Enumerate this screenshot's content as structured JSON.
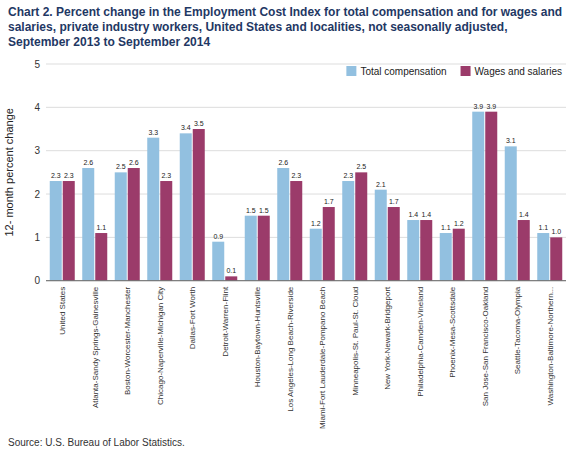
{
  "chart_data": {
    "type": "bar",
    "title": "Chart 2. Percent change in the Employment Cost Index for total compensation and for wages and salaries, private industry workers, United States and localities, not seasonally adjusted, September 2013 to September 2014",
    "y_label": "12- month percent change",
    "source": "Source: U.S. Bureau of Labor Statistics.",
    "categories": [
      "United States",
      "Atlanta-Sandy Springs-Gainesville",
      "Boston-Worcester-Manchester",
      "Chicago-Naperville-Michigan City",
      "Dallas-Fort Worth",
      "Detroit-Warren-Flint",
      "Houston-Baytown-Huntsville",
      "Los Angeles-Long Beach-Riverside",
      "Miami-Fort Lauderdale-Pompano Beach",
      "Minneapolis-St. Paul-St. Cloud",
      "New York-Newark-Bridgeport",
      "Philadelphia-Camden-Vineland",
      "Phoenix-Mesa-Scottsdale",
      "San Jose-San Francisco-Oakland",
      "Seattle-Tacoma-Olympia",
      "Washington-Baltimore-Northern..."
    ],
    "series": [
      {
        "name": "Total compensation",
        "color": "#92C0E0",
        "values": [
          2.3,
          2.6,
          2.5,
          3.3,
          3.4,
          0.9,
          1.5,
          2.6,
          1.2,
          2.3,
          2.1,
          1.4,
          1.1,
          3.9,
          3.1,
          1.1
        ],
        "value_labels": [
          "2.3",
          "2.6",
          "2.5",
          "3.3",
          "3.4",
          "0.9",
          "1.5",
          "2.6",
          "1.2",
          "2.3",
          "2.1",
          "1.4",
          "1.1",
          "3.9",
          "3.1",
          "1.1"
        ]
      },
      {
        "name": "Wages and salaries",
        "color": "#9B3B6A",
        "values": [
          2.3,
          1.1,
          2.6,
          2.3,
          3.5,
          0.1,
          1.5,
          2.3,
          1.7,
          2.5,
          1.7,
          1.4,
          1.2,
          3.9,
          1.4,
          1.0
        ],
        "value_labels": [
          "2.3",
          "1.1",
          "2.6",
          "2.3",
          "3.5",
          "0.1",
          "1.5",
          "2.3",
          "1.7",
          "2.5",
          "1.7",
          "1.4",
          "1.2",
          "3.9",
          "1.4",
          "1.0"
        ]
      }
    ],
    "ylim": [
      0,
      5
    ],
    "yticks": [
      0,
      1,
      2,
      3,
      4,
      5
    ],
    "grid": true,
    "legend": "upper right",
    "data_labels": true
  }
}
